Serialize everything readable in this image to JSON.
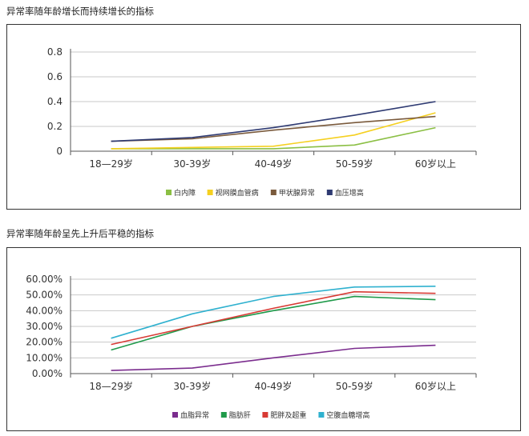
{
  "charts": [
    {
      "section_title": "异常率随年龄增长而持续增长的指标",
      "chart_data": {
        "type": "line",
        "categories": [
          "18—29岁",
          "30-39岁",
          "40-49岁",
          "50-59岁",
          "60岁以上"
        ],
        "yticks": [
          "0",
          "0.2",
          "0.4",
          "0.6",
          "0.8"
        ],
        "ylim": [
          0,
          0.8
        ],
        "grid": true,
        "legend_position": "bottom",
        "series": [
          {
            "name": "白内障",
            "color": "#8bbf44",
            "values": [
              0.02,
              0.02,
              0.02,
              0.05,
              0.19
            ]
          },
          {
            "name": "视网膜血管病",
            "color": "#f5d020",
            "values": [
              0.02,
              0.03,
              0.04,
              0.13,
              0.31
            ]
          },
          {
            "name": "甲状腺异常",
            "color": "#7a5a3c",
            "values": [
              0.08,
              0.1,
              0.17,
              0.23,
              0.28
            ]
          },
          {
            "name": "血压增高",
            "color": "#2e3a72",
            "values": [
              0.08,
              0.11,
              0.19,
              0.29,
              0.4
            ]
          }
        ]
      }
    },
    {
      "section_title": "异常率随年龄呈先上升后平稳的指标",
      "chart_data": {
        "type": "line",
        "categories": [
          "18—29岁",
          "30-39岁",
          "40-49岁",
          "50-59岁",
          "60岁以上"
        ],
        "yticks": [
          "0.00%",
          "10.00%",
          "20.00%",
          "30.00%",
          "40.00%",
          "50.00%",
          "60.00%"
        ],
        "ylim": [
          0,
          60
        ],
        "grid": true,
        "legend_position": "bottom",
        "series": [
          {
            "name": "血脂异常",
            "color": "#7b2d8e",
            "values": [
              2,
              3.5,
              10,
              16,
              18
            ]
          },
          {
            "name": "脂肪肝",
            "color": "#1f9a4a",
            "values": [
              15,
              30,
              40,
              49,
              47
            ]
          },
          {
            "name": "肥胖及超重",
            "color": "#d83a34",
            "values": [
              18.5,
              30,
              41.5,
              52,
              51
            ]
          },
          {
            "name": "空腹血糖增高",
            "color": "#2fb1cf",
            "values": [
              22.5,
              38,
              49,
              55,
              55.5
            ]
          }
        ]
      }
    }
  ]
}
